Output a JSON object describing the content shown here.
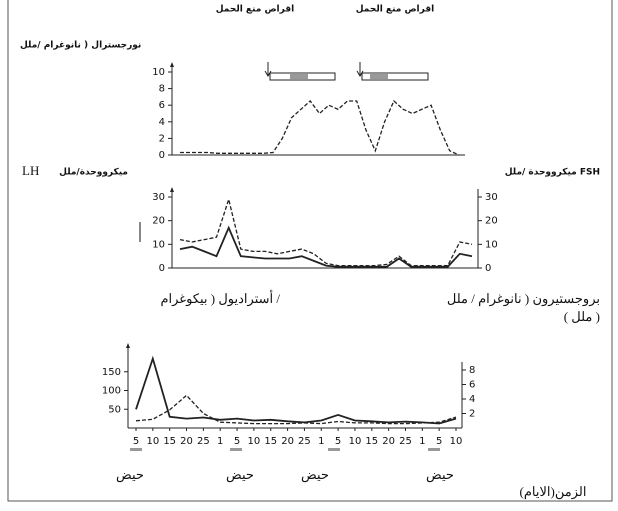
{
  "text": {
    "pill_left": "اقراص منع الحمل",
    "pill_right": "اقراص منع الحمل",
    "norgestrel": "نورجسترال ( نانوغرام /ملل",
    "lh": "LH",
    "lh_unit": "ميكرووحدة/ملل",
    "fsh_unit": "ميكرووحدة /ملل FSH",
    "estradiol": "أستراديول ( بيكوغرام /",
    "progesterone": "بروجستيرون ( نانوغرام / ملل",
    "progesterone_2": "( ملل )",
    "menses": [
      "حيض",
      "حيض",
      "حيض",
      "حيض"
    ],
    "time": "الزمن(الايام)"
  },
  "chart_data": [
    {
      "type": "line",
      "ylim": [
        0,
        10
      ],
      "yticks": [
        0,
        2,
        4,
        6,
        8,
        10
      ],
      "series": [
        {
          "color": "#222",
          "dash": true,
          "values": [
            0.3,
            0.3,
            0.3,
            0.3,
            0.2,
            0.2,
            0.2,
            0.2,
            0.2,
            0.2,
            0.3,
            2,
            4.5,
            5.5,
            6.5,
            5,
            6,
            5.5,
            6.5,
            6.5,
            3,
            0.5,
            4,
            6.5,
            5.5,
            5,
            5.5,
            6,
            3,
            0.5,
            0
          ]
        }
      ]
    },
    {
      "type": "line",
      "ylim": [
        0,
        30
      ],
      "yticks": [
        0,
        10,
        20,
        30
      ],
      "y2lim": [
        0,
        30
      ],
      "y2ticks": [
        0,
        10,
        20,
        30
      ],
      "series": [
        {
          "color": "#222",
          "dash": false,
          "values": [
            8,
            9,
            7,
            5,
            17,
            5,
            4.5,
            4,
            4,
            4,
            5,
            3,
            1,
            0.5,
            0.5,
            0.5,
            0.5,
            0.5,
            4,
            0.5,
            0.5,
            0.5,
            0.5,
            6,
            5
          ]
        },
        {
          "color": "#222",
          "dash": true,
          "axis": "y2",
          "values": [
            12,
            11,
            12,
            13,
            29,
            8,
            7,
            7,
            6,
            7,
            8,
            6,
            2,
            1,
            1,
            1,
            1,
            1.5,
            5,
            1,
            1,
            1,
            1,
            11,
            10
          ]
        }
      ]
    },
    {
      "type": "line",
      "ylim": [
        0,
        200
      ],
      "yticks": [
        50,
        100,
        150
      ],
      "y2lim": [
        0,
        8
      ],
      "y2ticks": [
        2,
        4,
        6,
        8
      ],
      "categories": [
        "5",
        "10",
        "15",
        "20",
        "25",
        "1",
        "5",
        "10",
        "15",
        "20",
        "25",
        "1",
        "5",
        "10",
        "15",
        "20",
        "25",
        "1",
        "5",
        "10"
      ],
      "series": [
        {
          "color": "#222",
          "dash": false,
          "values": [
            50,
            185,
            30,
            25,
            28,
            22,
            25,
            20,
            22,
            18,
            15,
            20,
            35,
            20,
            18,
            15,
            17,
            15,
            12,
            25
          ]
        },
        {
          "color": "#222",
          "dash": true,
          "axis": "y2",
          "values": [
            1,
            1.2,
            2.5,
            4.5,
            2,
            0.8,
            0.7,
            0.6,
            0.6,
            0.6,
            0.7,
            0.6,
            0.9,
            0.7,
            0.7,
            0.6,
            0.6,
            0.7,
            0.8,
            1.5
          ]
        }
      ]
    }
  ]
}
